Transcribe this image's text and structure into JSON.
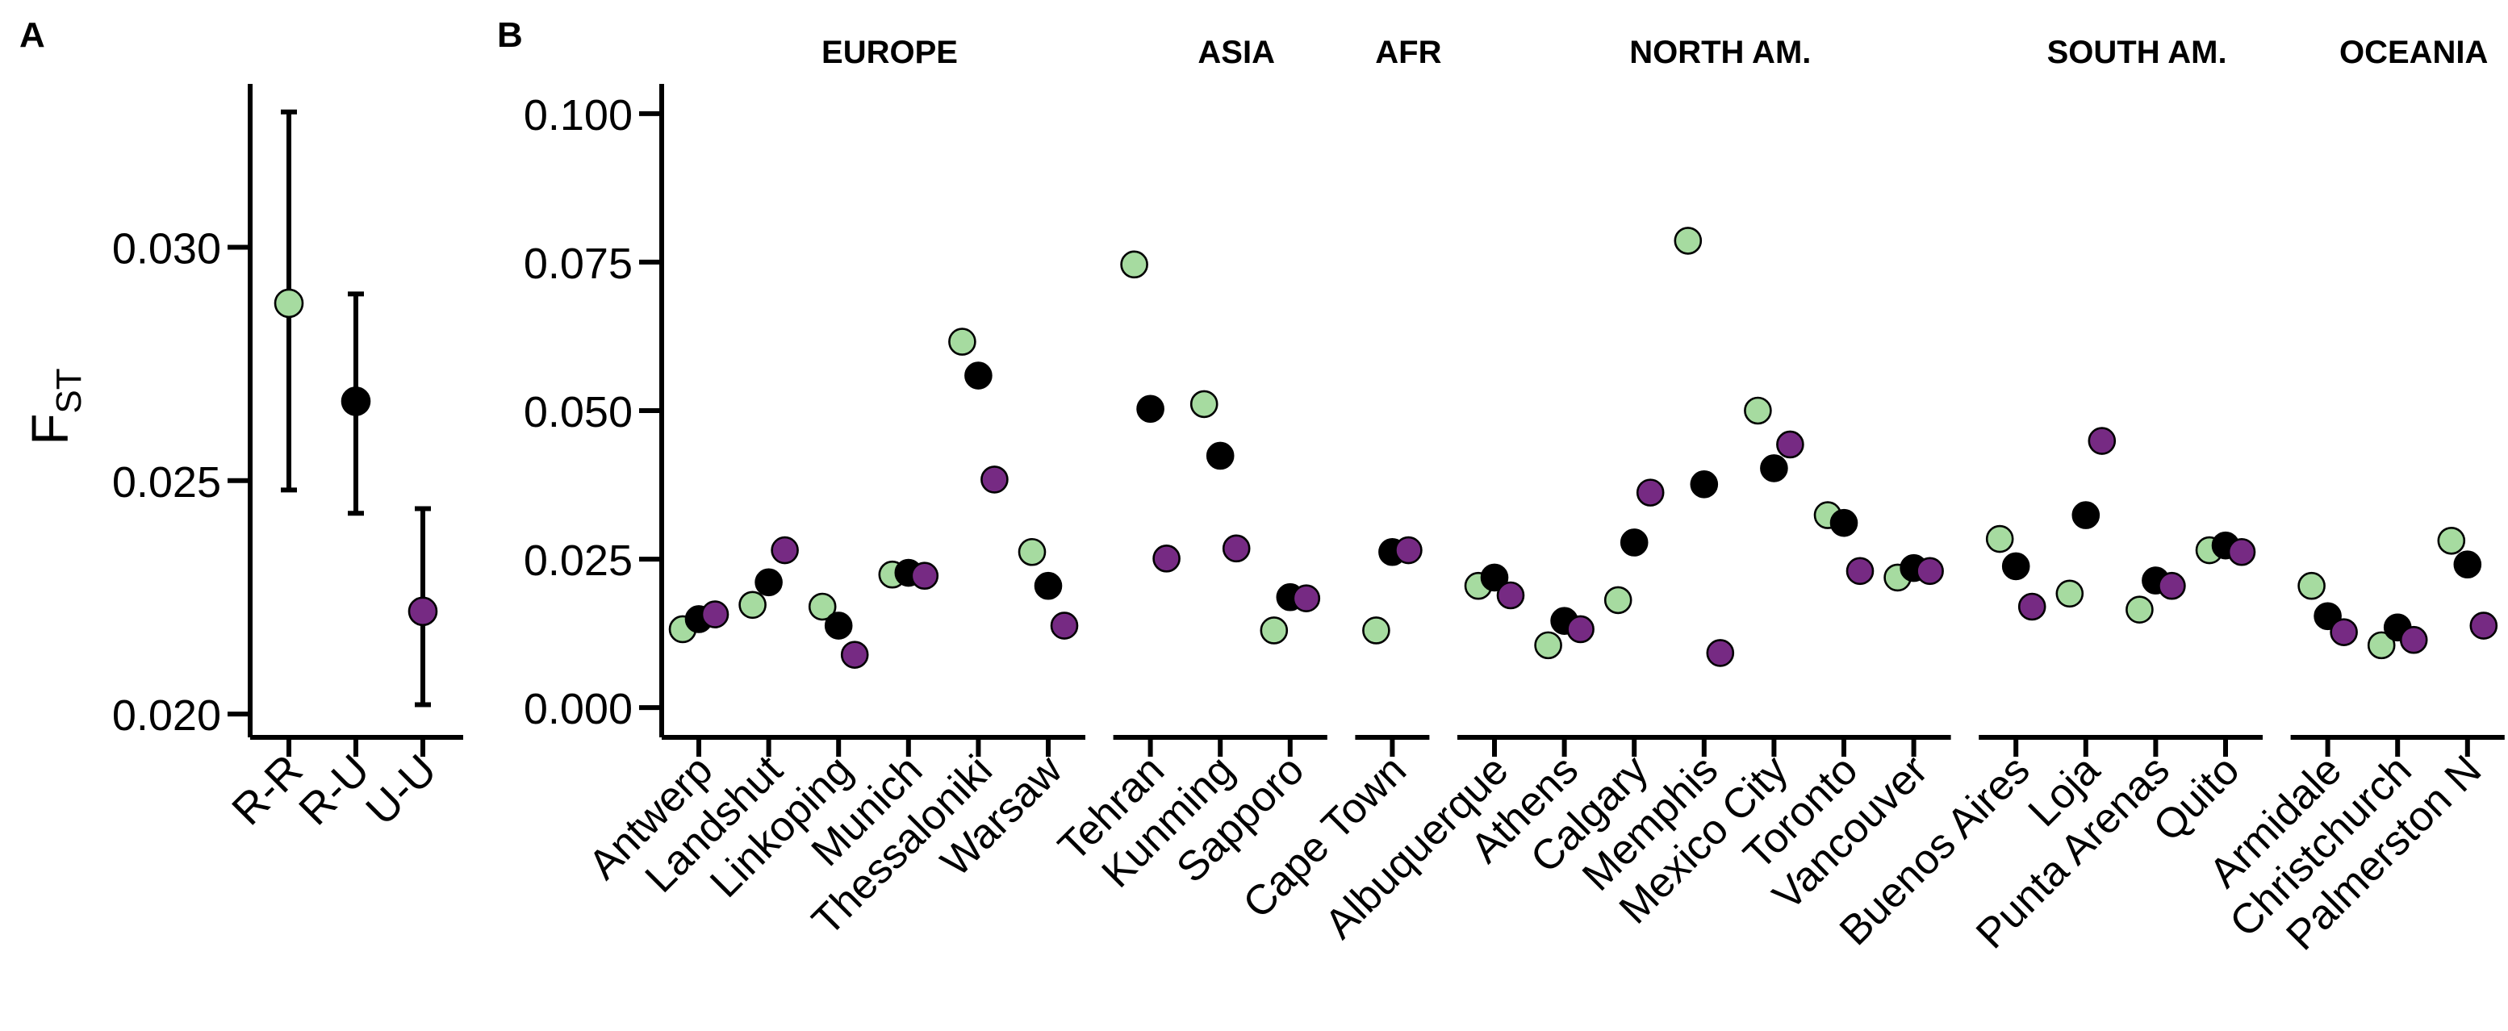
{
  "chart_data": [
    {
      "type": "pointrange",
      "panel_label": "A",
      "ylabel": "F",
      "ylabel_subscript": "ST",
      "categories": [
        "R-R",
        "R-U",
        "U-U"
      ],
      "values": [
        0.0288,
        0.0267,
        0.0222
      ],
      "lower": [
        0.0248,
        0.0243,
        0.0202
      ],
      "upper": [
        0.0329,
        0.029,
        0.0244
      ],
      "colors": [
        "#a6dba0",
        "#000000",
        "#762a83"
      ],
      "ylim": [
        0.0195,
        0.0335
      ],
      "yticks": [
        {
          "value": 0.02,
          "label": "0.020"
        },
        {
          "value": 0.025,
          "label": "0.025"
        },
        {
          "value": 0.03,
          "label": "0.030"
        }
      ]
    },
    {
      "type": "dot",
      "panel_label": "B",
      "groups": [
        {
          "label": "EUROPE",
          "categories": [
            "Antwerp",
            "Landshut",
            "Linkoping",
            "Munich",
            "Thessaloniki",
            "Warsaw"
          ]
        },
        {
          "label": "ASIA",
          "categories": [
            "Tehran",
            "Kunming",
            "Sapporo"
          ]
        },
        {
          "label": "AFR",
          "categories": [
            "Cape Town"
          ]
        },
        {
          "label": "NORTH AM.",
          "categories": [
            "Albuquerque",
            "Athens",
            "Calgary",
            "Memphis",
            "Mexico City",
            "Toronto",
            "Vancouver"
          ]
        },
        {
          "label": "SOUTH AM.",
          "categories": [
            "Buenos Aires",
            "Loja",
            "Punta Arenas",
            "Quito"
          ]
        },
        {
          "label": "OCEANIA",
          "categories": [
            "Armidale",
            "Christchurch",
            "Palmerston N"
          ]
        }
      ],
      "series": [
        {
          "color": "#a6dba0",
          "values": [
            0.0132,
            0.0173,
            0.017,
            0.0224,
            0.0616,
            0.0262,
            0.0746,
            0.0511,
            0.013,
            0.013,
            0.0205,
            0.0105,
            0.0181,
            0.0786,
            0.05,
            0.0324,
            0.0219,
            0.0284,
            0.0192,
            0.0165,
            0.0265,
            0.0205,
            0.0105,
            0.0281
          ]
        },
        {
          "color": "#000000",
          "values": [
            0.0149,
            0.0211,
            0.0138,
            0.0227,
            0.0559,
            0.0205,
            0.0503,
            0.0424,
            0.0186,
            0.0262,
            0.0219,
            0.0146,
            0.0278,
            0.0376,
            0.0403,
            0.0311,
            0.0235,
            0.0238,
            0.0324,
            0.0214,
            0.0273,
            0.0154,
            0.0135,
            0.0241
          ]
        },
        {
          "color": "#762a83",
          "values": [
            0.0157,
            0.0265,
            0.0089,
            0.0222,
            0.0384,
            0.0138,
            0.0251,
            0.0268,
            0.0184,
            0.0265,
            0.0189,
            0.0132,
            0.0362,
            0.0092,
            0.0443,
            0.023,
            0.023,
            0.017,
            0.0449,
            0.0205,
            0.0262,
            0.0127,
            0.0114,
            0.0138
          ]
        }
      ],
      "ylim": [
        -0.005,
        0.105
      ],
      "yticks": [
        {
          "value": 0,
          "label": "0.000"
        },
        {
          "value": 0.025,
          "label": "0.025"
        },
        {
          "value": 0.05,
          "label": "0.050"
        },
        {
          "value": 0.075,
          "label": "0.075"
        },
        {
          "value": 0.1,
          "label": "0.100"
        }
      ]
    }
  ]
}
